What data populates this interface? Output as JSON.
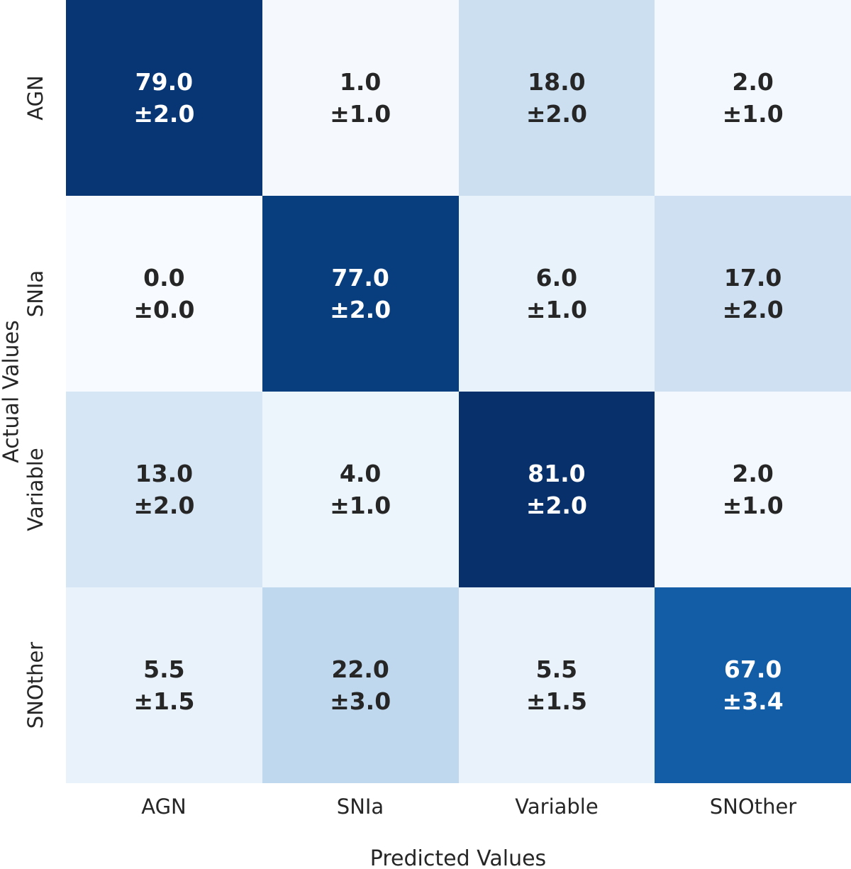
{
  "figure": {
    "background": "#ffffff",
    "text_color": "#262626"
  },
  "chart_data": {
    "type": "heatmap",
    "title": "",
    "xlabel": "Predicted Values",
    "ylabel": "Actual Values",
    "x_categories": [
      "AGN",
      "SNIa",
      "Variable",
      "SNOther"
    ],
    "y_categories": [
      "AGN",
      "SNIa",
      "Variable",
      "SNOther"
    ],
    "colormap": "Blues",
    "vmin": 0,
    "vmax": 81,
    "grid": false,
    "legend": "none",
    "series": [
      {
        "name": "AGN",
        "values": [
          79.0,
          1.0,
          18.0,
          2.0
        ],
        "errors": [
          2.0,
          1.0,
          2.0,
          1.0
        ]
      },
      {
        "name": "SNIa",
        "values": [
          0.0,
          77.0,
          6.0,
          17.0
        ],
        "errors": [
          0.0,
          2.0,
          1.0,
          2.0
        ]
      },
      {
        "name": "Variable",
        "values": [
          13.0,
          4.0,
          81.0,
          2.0
        ],
        "errors": [
          2.0,
          1.0,
          2.0,
          1.0
        ]
      },
      {
        "name": "SNOther",
        "values": [
          5.5,
          22.0,
          5.5,
          67.0
        ],
        "errors": [
          1.5,
          3.0,
          1.5,
          3.4
        ]
      }
    ],
    "cells": [
      {
        "row": "AGN",
        "col": "AGN",
        "value": "79.0",
        "error": "±2.0",
        "bg": "#083675",
        "fg": "#ffffff",
        "style": "background:#083675;color:#ffffff"
      },
      {
        "row": "AGN",
        "col": "SNIa",
        "value": "1.0",
        "error": "±1.0",
        "bg": "#f5f9fe",
        "fg": "#262626",
        "style": "background:#f5f9fe;color:#262626"
      },
      {
        "row": "AGN",
        "col": "Variable",
        "value": "18.0",
        "error": "±2.0",
        "bg": "#cbdff1",
        "fg": "#262626",
        "style": "background:#cbdff1;color:#262626"
      },
      {
        "row": "AGN",
        "col": "SNOther",
        "value": "2.0",
        "error": "±1.0",
        "bg": "#f2f8fd",
        "fg": "#262626",
        "style": "background:#f2f8fd;color:#262626"
      },
      {
        "row": "SNIa",
        "col": "AGN",
        "value": "0.0",
        "error": "±0.0",
        "bg": "#f7fbff",
        "fg": "#262626",
        "style": "background:#f7fbff;color:#262626"
      },
      {
        "row": "SNIa",
        "col": "SNIa",
        "value": "77.0",
        "error": "±2.0",
        "bg": "#083d7e",
        "fg": "#ffffff",
        "style": "background:#083d7e;color:#ffffff"
      },
      {
        "row": "SNIa",
        "col": "Variable",
        "value": "6.0",
        "error": "±1.0",
        "bg": "#e8f2fa",
        "fg": "#262626",
        "style": "background:#e8f2fa;color:#262626"
      },
      {
        "row": "SNIa",
        "col": "SNOther",
        "value": "17.0",
        "error": "±2.0",
        "bg": "#cee0f2",
        "fg": "#262626",
        "style": "background:#cee0f2;color:#262626"
      },
      {
        "row": "Variable",
        "col": "AGN",
        "value": "13.0",
        "error": "±2.0",
        "bg": "#d7e6f5",
        "fg": "#262626",
        "style": "background:#d7e6f5;color:#262626"
      },
      {
        "row": "Variable",
        "col": "SNIa",
        "value": "4.0",
        "error": "±1.0",
        "bg": "#edf5fc",
        "fg": "#262626",
        "style": "background:#edf5fc;color:#262626"
      },
      {
        "row": "Variable",
        "col": "Variable",
        "value": "81.0",
        "error": "±2.0",
        "bg": "#08306b",
        "fg": "#ffffff",
        "style": "background:#08306b;color:#ffffff"
      },
      {
        "row": "Variable",
        "col": "SNOther",
        "value": "2.0",
        "error": "±1.0",
        "bg": "#f2f8fd",
        "fg": "#262626",
        "style": "background:#f2f8fd;color:#262626"
      },
      {
        "row": "SNOther",
        "col": "AGN",
        "value": "5.5",
        "error": "±1.5",
        "bg": "#e9f2fb",
        "fg": "#262626",
        "style": "background:#e9f2fb;color:#262626"
      },
      {
        "row": "SNOther",
        "col": "SNIa",
        "value": "22.0",
        "error": "±3.0",
        "bg": "#bfd8ed",
        "fg": "#262626",
        "style": "background:#bfd8ed;color:#262626"
      },
      {
        "row": "SNOther",
        "col": "Variable",
        "value": "5.5",
        "error": "±1.5",
        "bg": "#e9f2fb",
        "fg": "#262626",
        "style": "background:#e9f2fb;color:#262626"
      },
      {
        "row": "SNOther",
        "col": "SNOther",
        "value": "67.0",
        "error": "±3.4",
        "bg": "#125da6",
        "fg": "#ffffff",
        "style": "background:#125da6;color:#ffffff"
      }
    ]
  }
}
